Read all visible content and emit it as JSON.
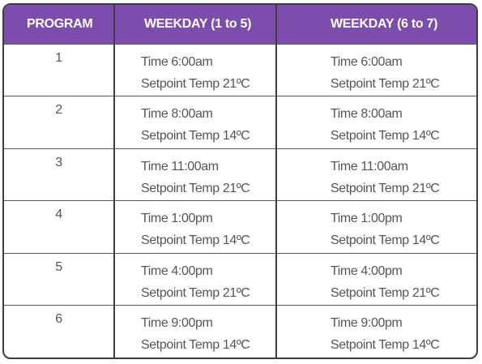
{
  "headers": {
    "program": "PROGRAM",
    "weekday": "WEEKDAY (1 to 5)",
    "weekend": "WEEKDAY (6 to 7)"
  },
  "rows": [
    {
      "program": "1",
      "weekday": {
        "time": "Time 6:00am",
        "setpoint": "Setpoint Temp 21ºC"
      },
      "weekend": {
        "time": "Time 6:00am",
        "setpoint": "Setpoint Temp 21ºC"
      }
    },
    {
      "program": "2",
      "weekday": {
        "time": "Time 8:00am",
        "setpoint": "Setpoint Temp 14ºC"
      },
      "weekend": {
        "time": "Time 8:00am",
        "setpoint": "Setpoint Temp 14ºC"
      }
    },
    {
      "program": "3",
      "weekday": {
        "time": "Time 11:00am",
        "setpoint": "Setpoint Temp 21ºC"
      },
      "weekend": {
        "time": "Time 11:00am",
        "setpoint": "Setpoint Temp 21ºC"
      }
    },
    {
      "program": "4",
      "weekday": {
        "time": "Time 1:00pm",
        "setpoint": "Setpoint Temp 14ºC"
      },
      "weekend": {
        "time": "Time 1:00pm",
        "setpoint": "Setpoint Temp 14ºC"
      }
    },
    {
      "program": "5",
      "weekday": {
        "time": "Time 4:00pm",
        "setpoint": "Setpoint Temp 21ºC"
      },
      "weekend": {
        "time": "Time 4:00pm",
        "setpoint": "Setpoint Temp 21ºC"
      }
    },
    {
      "program": "6",
      "weekday": {
        "time": "Time 9:00pm",
        "setpoint": "Setpoint Temp 14ºC"
      },
      "weekend": {
        "time": "Time 9:00pm",
        "setpoint": "Setpoint Temp 14ºC"
      }
    }
  ],
  "colors": {
    "header_bg": "#7c4dad",
    "header_text": "#ffffff",
    "body_text": "#555555",
    "border": "#3d3d3d"
  }
}
